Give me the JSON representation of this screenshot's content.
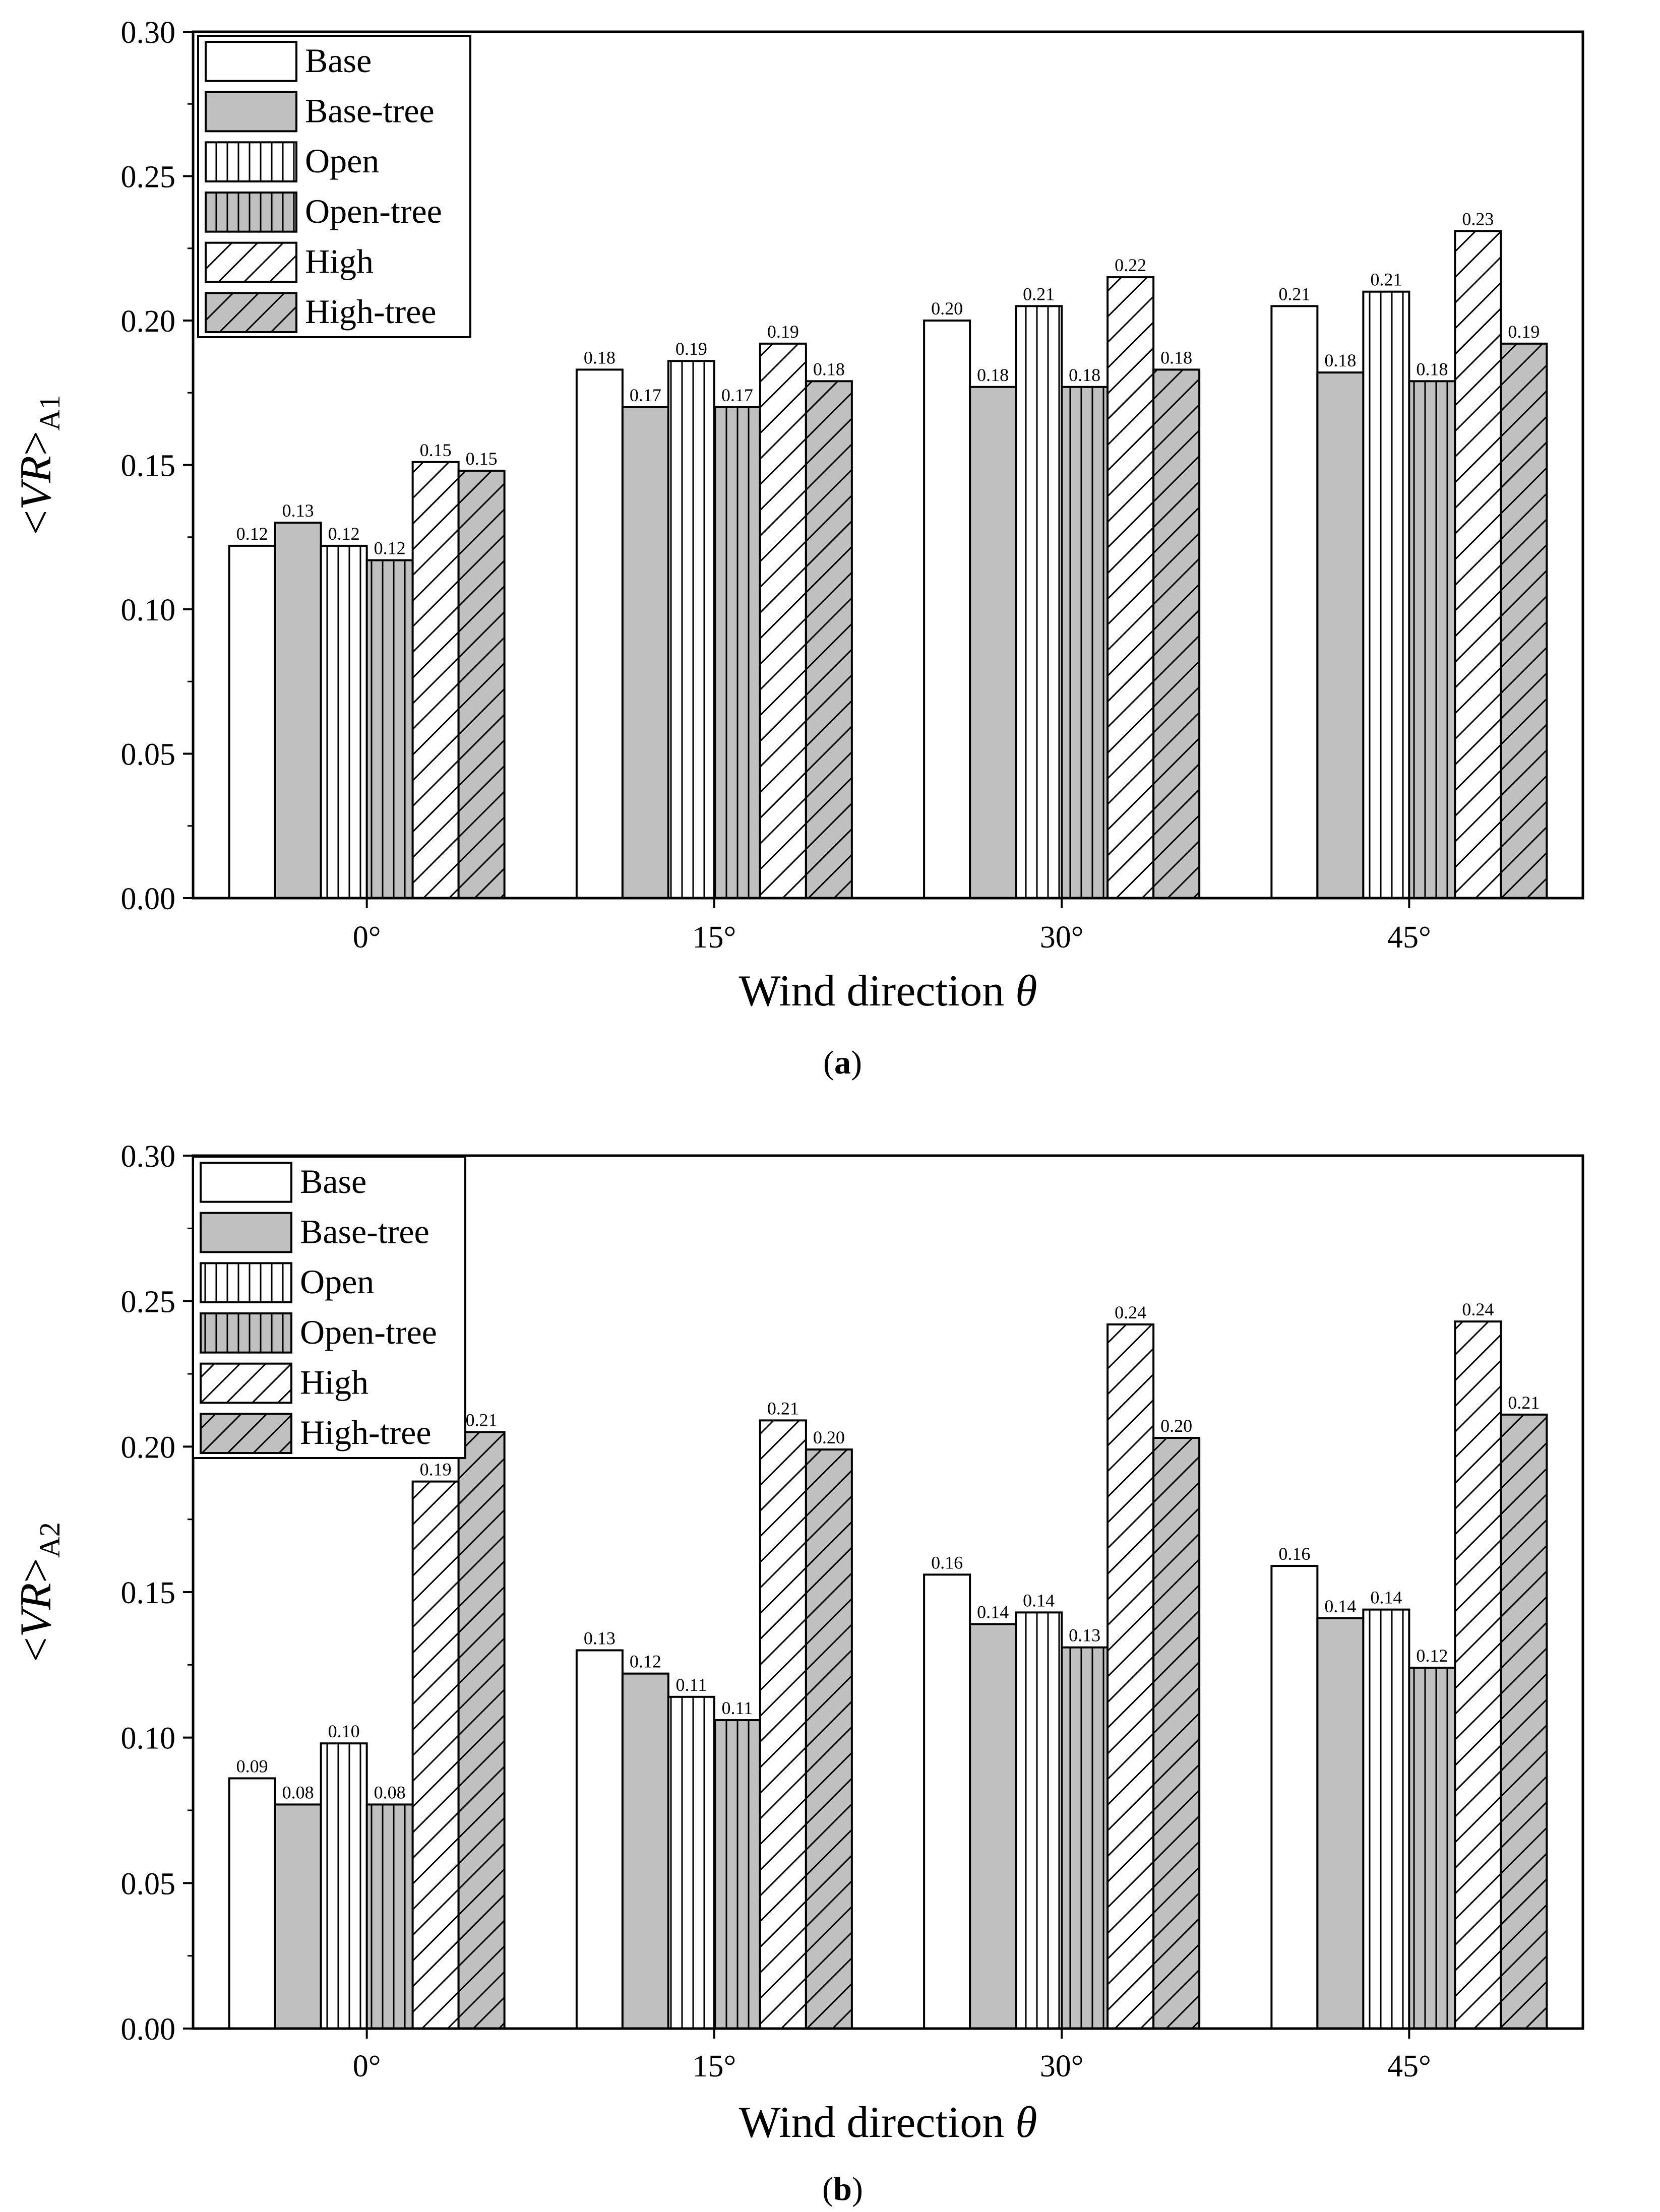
{
  "colors": {
    "white": "#ffffff",
    "gray": "#c0c0c0",
    "stroke": "#000000"
  },
  "chart_data": [
    {
      "id": "a",
      "type": "bar",
      "caption_letter": "a",
      "title": "",
      "xlabel": "Wind direction",
      "xlabel_symbol": "θ",
      "ylabel_text": "<VR>",
      "ylabel_v": "VR",
      "ylabel_open": "<",
      "ylabel_close": ">",
      "ylabel_subscript": "A1",
      "categories": [
        "0°",
        "15°",
        "30°",
        "45°"
      ],
      "ylim": [
        0,
        0.3
      ],
      "yticks": [
        "0.00",
        "0.05",
        "0.10",
        "0.15",
        "0.20",
        "0.25",
        "0.30"
      ],
      "legend_position": "top-left",
      "series": [
        {
          "name": "Base",
          "fill": "white",
          "pattern": "none",
          "values": [
            0.122,
            0.183,
            0.2,
            0.205
          ],
          "labels": [
            "0.12",
            "0.18",
            "0.20",
            "0.21"
          ]
        },
        {
          "name": "Base-tree",
          "fill": "gray",
          "pattern": "none",
          "values": [
            0.13,
            0.17,
            0.177,
            0.182
          ],
          "labels": [
            "0.13",
            "0.17",
            "0.18",
            "0.18"
          ]
        },
        {
          "name": "Open",
          "fill": "white",
          "pattern": "vertical",
          "values": [
            0.122,
            0.186,
            0.205,
            0.21
          ],
          "labels": [
            "0.12",
            "0.19",
            "0.21",
            "0.21"
          ]
        },
        {
          "name": "Open-tree",
          "fill": "gray",
          "pattern": "vertical",
          "values": [
            0.117,
            0.17,
            0.177,
            0.179
          ],
          "labels": [
            "0.12",
            "0.17",
            "0.18",
            "0.18"
          ]
        },
        {
          "name": "High",
          "fill": "white",
          "pattern": "diagonal",
          "values": [
            0.151,
            0.192,
            0.215,
            0.231
          ],
          "labels": [
            "0.15",
            "0.19",
            "0.22",
            "0.23"
          ]
        },
        {
          "name": "High-tree",
          "fill": "gray",
          "pattern": "diagonal",
          "values": [
            0.148,
            0.179,
            0.183,
            0.192
          ],
          "labels": [
            "0.15",
            "0.18",
            "0.18",
            "0.19"
          ]
        }
      ]
    },
    {
      "id": "b",
      "type": "bar",
      "caption_letter": "b",
      "title": "",
      "xlabel": "Wind direction",
      "xlabel_symbol": "θ",
      "ylabel_text": "<VR>",
      "ylabel_v": "VR",
      "ylabel_open": "<",
      "ylabel_close": ">",
      "ylabel_subscript": "A2",
      "categories": [
        "0°",
        "15°",
        "30°",
        "45°"
      ],
      "ylim": [
        0,
        0.3
      ],
      "yticks": [
        "0.00",
        "0.05",
        "0.10",
        "0.15",
        "0.20",
        "0.25",
        "0.30"
      ],
      "legend_position": "top-left",
      "series": [
        {
          "name": "Base",
          "fill": "white",
          "pattern": "none",
          "values": [
            0.086,
            0.13,
            0.156,
            0.159
          ],
          "labels": [
            "0.09",
            "0.13",
            "0.16",
            "0.16"
          ]
        },
        {
          "name": "Base-tree",
          "fill": "gray",
          "pattern": "none",
          "values": [
            0.077,
            0.122,
            0.139,
            0.141
          ],
          "labels": [
            "0.08",
            "0.12",
            "0.14",
            "0.14"
          ]
        },
        {
          "name": "Open",
          "fill": "white",
          "pattern": "vertical",
          "values": [
            0.098,
            0.114,
            0.143,
            0.144
          ],
          "labels": [
            "0.10",
            "0.11",
            "0.14",
            "0.14"
          ]
        },
        {
          "name": "Open-tree",
          "fill": "gray",
          "pattern": "vertical",
          "values": [
            0.077,
            0.106,
            0.131,
            0.124
          ],
          "labels": [
            "0.08",
            "0.11",
            "0.13",
            "0.12"
          ]
        },
        {
          "name": "High",
          "fill": "white",
          "pattern": "diagonal",
          "values": [
            0.188,
            0.209,
            0.242,
            0.243
          ],
          "labels": [
            "0.19",
            "0.21",
            "0.24",
            "0.24"
          ]
        },
        {
          "name": "High-tree",
          "fill": "gray",
          "pattern": "diagonal",
          "values": [
            0.205,
            0.199,
            0.203,
            0.211
          ],
          "labels": [
            "0.21",
            "0.20",
            "0.20",
            "0.21"
          ]
        }
      ]
    }
  ]
}
